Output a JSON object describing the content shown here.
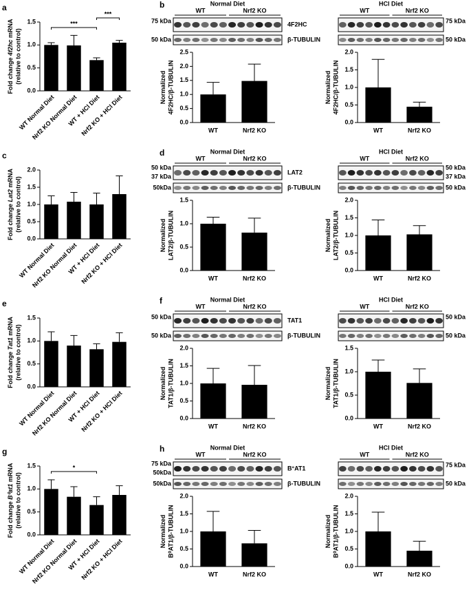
{
  "chart_data": [
    {
      "type": "bar",
      "panel": "a",
      "y_label": [
        "Fold change ",
        "4f2hc",
        " mRNA"
      ],
      "y_label_2": "(relative to control)",
      "categories": [
        "WT Normal Diet",
        "Nrf2 KO Normal Diet",
        "WT + HCl Diet",
        "Nrf2 KO + HCl Diet"
      ],
      "values": [
        1.0,
        0.99,
        0.67,
        1.05
      ],
      "errors": [
        0.05,
        0.22,
        0.05,
        0.05
      ],
      "color": "#000000",
      "ylim": [
        0,
        1.5
      ],
      "yticks": [
        {
          "value": 0,
          "label": "0.0"
        },
        0.5,
        {
          "value": 1,
          "label": "1.0"
        },
        1.5
      ],
      "significance": [
        {
          "pair": [
            "WT Normal Diet",
            "WT + HCl Diet"
          ],
          "label": "***"
        },
        {
          "pair": [
            "WT + HCl Diet",
            "Nrf2 KO + HCl Diet"
          ],
          "label": "***"
        }
      ]
    },
    {
      "type": "bar",
      "y_label": [
        "Normalized"
      ],
      "y_label_2": "4F2HC/β-TUBULIN",
      "categories": [
        "WT",
        "Nrf2 KO"
      ],
      "values": [
        1.0,
        1.48
      ],
      "errors": [
        0.43,
        0.6
      ],
      "color": "#000000",
      "ylim": [
        0,
        2.5
      ],
      "yticks": [
        {
          "value": 0,
          "label": "0.0"
        },
        0.5,
        {
          "value": 1,
          "label": "1.0"
        },
        1.5,
        {
          "value": 2,
          "label": "2.0"
        },
        2.5
      ]
    },
    {
      "type": "bar",
      "y_label": [
        "Normalized"
      ],
      "y_label_2": "4F2HC/β-TUBULIN",
      "categories": [
        "WT",
        "Nrf2 KO"
      ],
      "values": [
        1.0,
        0.45
      ],
      "errors": [
        0.8,
        0.13
      ],
      "color": "#000000",
      "ylim": [
        0,
        2
      ],
      "yticks": [
        {
          "value": 0,
          "label": "0.0"
        },
        0.5,
        {
          "value": 1,
          "label": "1.0"
        },
        1.5,
        {
          "value": 2,
          "label": "2.0"
        }
      ]
    },
    {
      "type": "bar",
      "panel": "c",
      "y_label": [
        "Fold change ",
        "Lat2",
        " mRNA"
      ],
      "y_label_2": "(relative to control)",
      "categories": [
        "WT Normal Diet",
        "Nrf2 KO Normal Diet",
        "WT + HCl Diet",
        "Nrf2 KO + HCl Diet"
      ],
      "values": [
        1.0,
        1.08,
        1.0,
        1.3
      ],
      "errors": [
        0.25,
        0.27,
        0.33,
        0.53
      ],
      "color": "#000000",
      "ylim": [
        0,
        2
      ],
      "yticks": [
        {
          "value": 0,
          "label": "0.0"
        },
        0.5,
        {
          "value": 1,
          "label": "1.0"
        },
        1.5,
        {
          "value": 2,
          "label": "2.0"
        }
      ]
    },
    {
      "type": "bar",
      "y_label": [
        "Normalized"
      ],
      "y_label_2": "LAT2/β-TUBULIN",
      "categories": [
        "WT",
        "Nrf2 KO"
      ],
      "values": [
        1.0,
        0.81
      ],
      "errors": [
        0.14,
        0.31
      ],
      "color": "#000000",
      "ylim": [
        0,
        1.5
      ],
      "yticks": [
        {
          "value": 0,
          "label": "0.0"
        },
        0.5,
        {
          "value": 1,
          "label": "1.0"
        },
        1.5
      ]
    },
    {
      "type": "bar",
      "y_label": [
        "Normalized"
      ],
      "y_label_2": "LAT2/β-TUBULIN",
      "categories": [
        "WT",
        "Nrf2 KO"
      ],
      "values": [
        1.0,
        1.03
      ],
      "errors": [
        0.44,
        0.25
      ],
      "color": "#000000",
      "ylim": [
        0,
        2
      ],
      "yticks": [
        {
          "value": 0,
          "label": "0.0"
        },
        0.5,
        {
          "value": 1,
          "label": "1.0"
        },
        1.5,
        {
          "value": 2,
          "label": "2.0"
        }
      ]
    },
    {
      "type": "bar",
      "panel": "e",
      "y_label": [
        "Fold change ",
        "Tat1",
        " mRNA"
      ],
      "y_label_2": "(relative to control)",
      "categories": [
        "WT Normal Diet",
        "Nrf2 KO Normal Diet",
        "WT + HCl Diet",
        "Nrf2 KO + HCl Diet"
      ],
      "values": [
        1.0,
        0.9,
        0.82,
        0.98
      ],
      "errors": [
        0.2,
        0.22,
        0.12,
        0.2
      ],
      "color": "#000000",
      "ylim": [
        0,
        1.5
      ],
      "yticks": [
        {
          "value": 0,
          "label": "0.0"
        },
        0.5,
        {
          "value": 1,
          "label": "1.0"
        },
        1.5
      ]
    },
    {
      "type": "bar",
      "y_label": [
        "Normalized"
      ],
      "y_label_2": "TAT1/β-TUBULIN",
      "categories": [
        "WT",
        "Nrf2 KO"
      ],
      "values": [
        1.0,
        0.96
      ],
      "errors": [
        0.43,
        0.55
      ],
      "color": "#000000",
      "ylim": [
        0,
        2
      ],
      "yticks": [
        {
          "value": 0,
          "label": "0.0"
        },
        0.5,
        {
          "value": 1,
          "label": "1.0"
        },
        1.5,
        {
          "value": 2,
          "label": "2.0"
        }
      ]
    },
    {
      "type": "bar",
      "y_label": [
        "Normalized"
      ],
      "y_label_2": "TAT1/β-TUBULIN",
      "categories": [
        "WT",
        "Nrf2 KO"
      ],
      "values": [
        1.0,
        0.76
      ],
      "errors": [
        0.25,
        0.3
      ],
      "color": "#000000",
      "ylim": [
        0,
        1.5
      ],
      "yticks": [
        {
          "value": 0,
          "label": "0.0"
        },
        0.5,
        {
          "value": 1,
          "label": "1.0"
        },
        1.5
      ]
    },
    {
      "type": "bar",
      "panel": "g",
      "y_label": [
        "Fold change ",
        "B⁰at1",
        " mRNA"
      ],
      "y_label_2": "(relative to control)",
      "categories": [
        "WT Normal Diet",
        "Nrf2 KO Normal Diet",
        "WT + HCl Diet",
        "Nrf2 KO + HCl Diet"
      ],
      "values": [
        1.0,
        0.83,
        0.65,
        0.87
      ],
      "errors": [
        0.2,
        0.22,
        0.18,
        0.2
      ],
      "color": "#000000",
      "ylim": [
        0,
        1.5
      ],
      "yticks": [
        {
          "value": 0,
          "label": "0.0"
        },
        0.5,
        {
          "value": 1,
          "label": "1.0"
        },
        1.5
      ],
      "significance": [
        {
          "pair": [
            "WT Normal Diet",
            "WT + HCl Diet"
          ],
          "label": "*"
        }
      ]
    },
    {
      "type": "bar",
      "y_label": [
        "Normalized"
      ],
      "y_label_2": "B⁰AT1/β-TUBULIN",
      "categories": [
        "WT",
        "Nrf2 KO"
      ],
      "values": [
        1.0,
        0.66
      ],
      "errors": [
        0.57,
        0.37
      ],
      "color": "#000000",
      "ylim": [
        0,
        2
      ],
      "yticks": [
        {
          "value": 0,
          "label": "0.0"
        },
        0.5,
        {
          "value": 1,
          "label": "1.0"
        },
        1.5,
        {
          "value": 2,
          "label": "2.0"
        }
      ]
    },
    {
      "type": "bar",
      "y_label": [
        "Normalized"
      ],
      "y_label_2": "B⁰AT1/β-TUBULIN",
      "categories": [
        "WT",
        "Nrf2 KO"
      ],
      "values": [
        1.0,
        0.45
      ],
      "errors": [
        0.55,
        0.27
      ],
      "color": "#000000",
      "ylim": [
        0,
        2
      ],
      "yticks": [
        {
          "value": 0,
          "label": "0.0"
        },
        0.5,
        {
          "value": 1,
          "label": "1.0"
        },
        1.5,
        {
          "value": 2,
          "label": "2.0"
        }
      ]
    }
  ],
  "blots": [
    {
      "panel": "b",
      "protein": "4F2HC",
      "loading": "β-TUBULIN",
      "left": {
        "title": "Normal Diet",
        "groups": [
          "WT",
          "Nrf2 KO"
        ],
        "markers": [
          "75 kDa",
          "50 kDa"
        ]
      },
      "right": {
        "title": "HCl Diet",
        "groups": [
          "WT",
          "Nrf2 KO"
        ],
        "markers": [
          "75 kDa",
          "50 kDa"
        ]
      }
    },
    {
      "panel": "d",
      "protein": "LAT2",
      "loading": "β-TUBULIN",
      "left": {
        "title": "Normal Diet",
        "groups": [
          "WT",
          "Nrf2 KO"
        ],
        "markers": [
          "50 kDa",
          "37 kDa",
          "50kDa"
        ]
      },
      "right": {
        "title": "HCl Diet",
        "groups": [
          "WT",
          "Nrf2 KO"
        ],
        "markers": [
          "50 kDa",
          "37 kDa",
          "50 kDa"
        ]
      }
    },
    {
      "panel": "f",
      "protein": "TAT1",
      "loading": "β-TUBULIN",
      "left": {
        "title": "Normal Diet",
        "groups": [
          "WT",
          "Nrf2 KO"
        ],
        "markers": [
          "50 kDa",
          "50 kDa"
        ]
      },
      "right": {
        "title": "HCl Diet",
        "groups": [
          "WT",
          "Nrf2 KO"
        ],
        "markers": [
          "50 kDa",
          "50 kDa"
        ]
      }
    },
    {
      "panel": "h",
      "protein": "B°AT1",
      "loading": "β-TUBULIN",
      "left": {
        "title": "Normal Diet",
        "groups": [
          "WT",
          "Nrf2 KO"
        ],
        "markers": [
          "75 kDa",
          "50kDa",
          "50kDa"
        ]
      },
      "right": {
        "title": "HCl Diet",
        "groups": [
          "WT",
          "Nrf2 KO"
        ],
        "markers": [
          "75 kDa",
          "50 kDa"
        ]
      }
    }
  ]
}
